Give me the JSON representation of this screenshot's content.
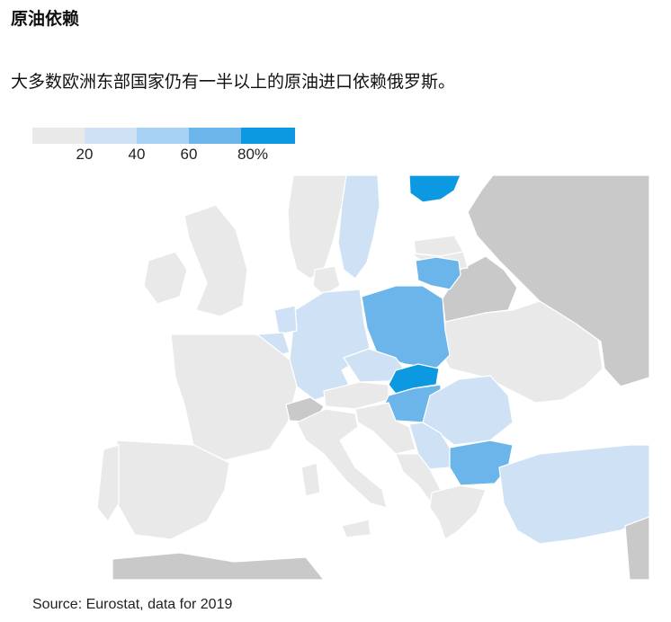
{
  "title": "原油依赖",
  "subtitle": "大多数欧洲东部国家仍有一半以上的原油进口依赖俄罗斯。",
  "legend": {
    "classes": [
      {
        "label": "",
        "color": "#e9e9e9"
      },
      {
        "label": "20",
        "color": "#cfe2f5"
      },
      {
        "label": "40",
        "color": "#a7d1f4"
      },
      {
        "label": "60",
        "color": "#6cb5ea"
      },
      {
        "label": "80%",
        "color": "#0d98e2"
      }
    ]
  },
  "source": "Source: Eurostat, data for 2019",
  "colors": {
    "non_eu": "#c9c9c9",
    "sea": "#ffffff",
    "eu_low": "#e9e9e9"
  }
}
